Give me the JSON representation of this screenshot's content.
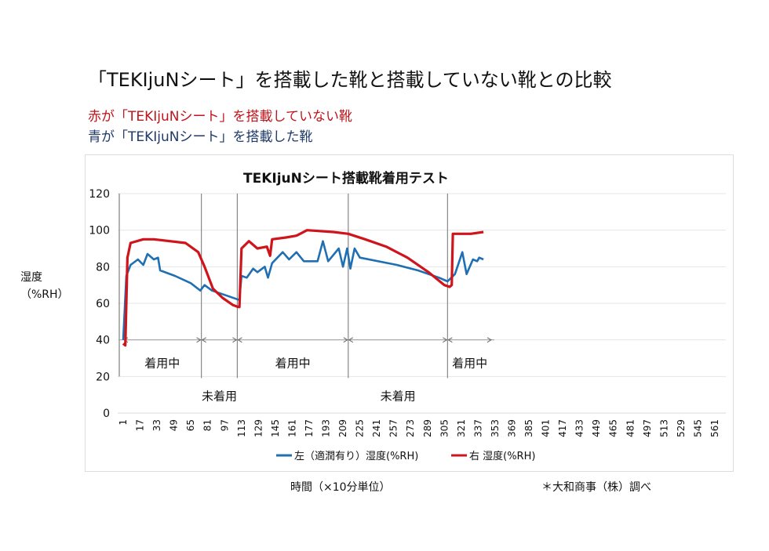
{
  "header": {
    "title": "「TEKIjuNシート」を搭載した靴と搭載していない靴との比較",
    "note_red": "赤が「TEKIjuNシート」を搭載していない靴",
    "note_blue": "青が「TEKIjuNシート」を搭載した靴"
  },
  "footer": {
    "xlabel": "時間（×10分単位）",
    "source": "＊大和商事（株）調べ"
  },
  "chart_data": {
    "type": "line",
    "title": "TEKIjuNシート搭載靴着用テスト",
    "ylabel": "湿度\n（%RH）",
    "ylabel_lines": [
      "湿度",
      "（%RH）"
    ],
    "xlabel": "時間（×10分単位）",
    "ylim": [
      0,
      120
    ],
    "xlim": [
      1,
      576
    ],
    "y_ticks": [
      0,
      20,
      40,
      60,
      80,
      100,
      120
    ],
    "x_ticks": [
      1,
      17,
      33,
      49,
      65,
      81,
      97,
      113,
      129,
      145,
      161,
      177,
      193,
      209,
      225,
      241,
      257,
      273,
      289,
      305,
      321,
      337,
      353,
      369,
      385,
      401,
      417,
      433,
      449,
      465,
      481,
      497,
      513,
      529,
      545,
      561
    ],
    "grid": true,
    "legend_position": "bottom",
    "series": [
      {
        "name": "左（適潤有り）湿度(%RH)",
        "color": "#1f6fb2",
        "x": [
          1,
          4,
          8,
          15,
          20,
          24,
          30,
          34,
          36,
          50,
          65,
          74,
          78,
          85,
          95,
          110,
          111,
          113,
          118,
          124,
          128,
          135,
          138,
          142,
          152,
          158,
          165,
          172,
          185,
          190,
          195,
          205,
          209,
          213,
          216,
          220,
          225,
          260,
          280,
          300,
          308,
          315,
          322,
          326,
          332,
          336,
          338,
          342
        ],
        "y": [
          40,
          75,
          81,
          84,
          81,
          87,
          84,
          85,
          78,
          75,
          71,
          67,
          70,
          67,
          65,
          62,
          62,
          75,
          74,
          79,
          77,
          80,
          74,
          82,
          88,
          84,
          88,
          83,
          83,
          94,
          83,
          90,
          80,
          90,
          79,
          90,
          85,
          81,
          78,
          74,
          72,
          76,
          88,
          76,
          84,
          83,
          85,
          84
        ]
      },
      {
        "name": "右 湿度(%RH)",
        "color": "#d0141c",
        "x": [
          1,
          3,
          5,
          8,
          20,
          30,
          60,
          72,
          78,
          86,
          95,
          105,
          110,
          111,
          113,
          120,
          128,
          137,
          140,
          142,
          155,
          165,
          175,
          200,
          214,
          230,
          250,
          270,
          290,
          305,
          310,
          312,
          313,
          330,
          342
        ],
        "y": [
          38,
          37,
          85,
          93,
          95,
          95,
          93,
          88,
          80,
          68,
          63,
          59,
          58,
          58,
          90,
          94,
          90,
          91,
          86,
          95,
          96,
          97,
          100,
          99,
          98,
          95,
          91,
          85,
          77,
          70,
          69,
          70,
          98,
          98,
          99
        ]
      }
    ],
    "phase_boundaries": [
      75,
      109,
      214,
      308
    ],
    "phase_line_value": 40,
    "phases": [
      {
        "label": "着用中",
        "from": 1,
        "to": 75,
        "pos": "above"
      },
      {
        "label": "未着用",
        "from": 75,
        "to": 109,
        "pos": "below"
      },
      {
        "label": "着用中",
        "from": 109,
        "to": 214,
        "pos": "above"
      },
      {
        "label": "未着用",
        "from": 214,
        "to": 308,
        "pos": "below"
      },
      {
        "label": "着用中",
        "from": 308,
        "to": 350,
        "pos": "above"
      }
    ]
  }
}
